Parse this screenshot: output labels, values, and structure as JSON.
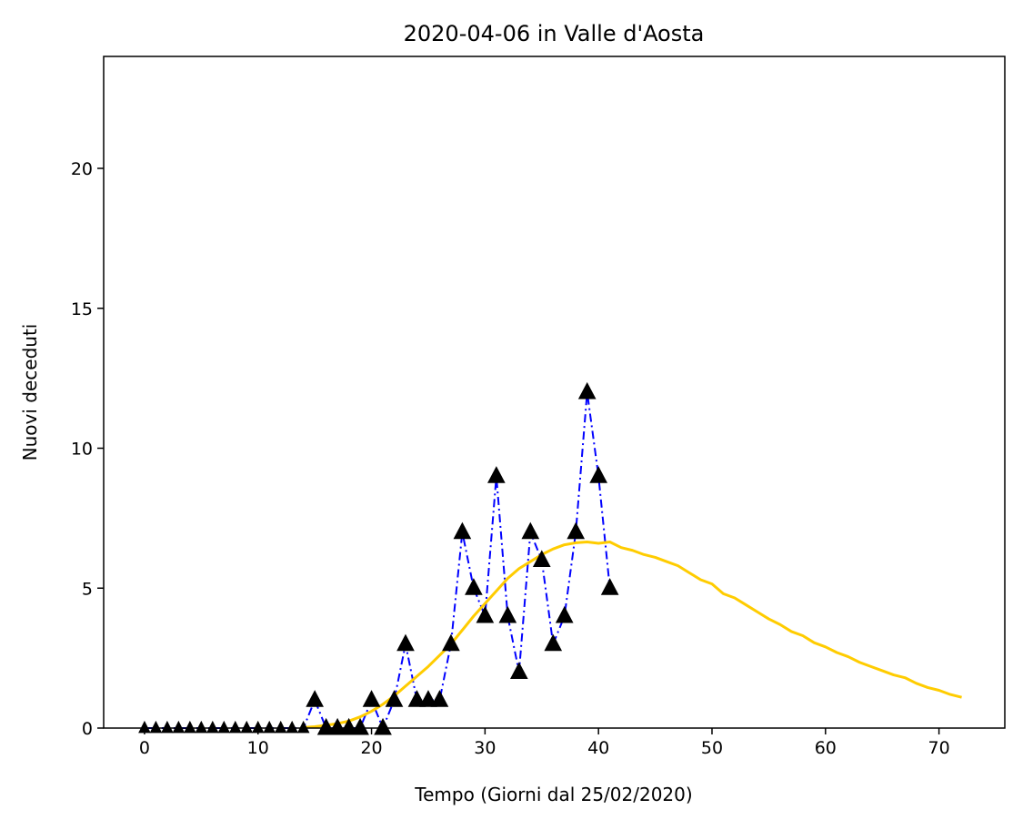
{
  "chart_data": {
    "type": "line",
    "title": "2020-04-06 in Valle d'Aosta",
    "xlabel": "Tempo (Giorni dal 25/02/2020)",
    "ylabel": "Nuovi deceduti",
    "xlim": [
      -3.6,
      75.8
    ],
    "ylim": [
      0,
      24
    ],
    "xticks": [
      0,
      10,
      20,
      30,
      40,
      50,
      60,
      70
    ],
    "yticks": [
      0,
      5,
      10,
      15,
      20
    ],
    "grid": false,
    "series": [
      {
        "style": "blue dash-dot line with black triangle markers",
        "color": "#0000ff",
        "marker_color": "#000000",
        "x": [
          0,
          1,
          2,
          3,
          4,
          5,
          6,
          7,
          8,
          9,
          10,
          11,
          12,
          13,
          14,
          15,
          16,
          17,
          18,
          19,
          20,
          21,
          22,
          23,
          24,
          25,
          26,
          27,
          28,
          29,
          30,
          31,
          32,
          33,
          34,
          35,
          36,
          37,
          38,
          39,
          40,
          41
        ],
        "y": [
          0,
          0,
          0,
          0,
          0,
          0,
          0,
          0,
          0,
          0,
          0,
          0,
          0,
          0,
          0,
          1,
          0,
          0,
          0,
          0,
          1,
          0,
          1,
          3,
          1,
          1,
          1,
          3,
          7,
          5,
          4,
          9,
          4,
          2,
          7,
          6,
          3,
          4,
          7,
          12,
          9,
          5
        ]
      },
      {
        "style": "solid line",
        "color": "#ffcc00",
        "x": [
          14,
          15,
          16,
          17,
          18,
          19,
          20,
          21,
          22,
          23,
          24,
          25,
          26,
          27,
          28,
          29,
          30,
          31,
          32,
          33,
          34,
          35,
          36,
          37,
          38,
          39,
          40,
          41,
          42,
          43,
          44,
          45,
          46,
          47,
          48,
          49,
          50,
          51,
          52,
          53,
          54,
          55,
          56,
          57,
          58,
          59,
          60,
          61,
          62,
          63,
          64,
          65,
          66,
          67,
          68,
          69,
          70,
          71,
          72
        ],
        "y": [
          0.02,
          0.05,
          0.1,
          0.16,
          0.25,
          0.4,
          0.6,
          0.85,
          1.15,
          1.5,
          1.85,
          2.2,
          2.6,
          3.0,
          3.5,
          4.0,
          4.45,
          4.9,
          5.35,
          5.7,
          5.95,
          6.2,
          6.4,
          6.55,
          6.62,
          6.65,
          6.6,
          6.65,
          6.45,
          6.35,
          6.2,
          6.1,
          5.95,
          5.8,
          5.55,
          5.3,
          5.15,
          4.8,
          4.65,
          4.4,
          4.15,
          3.9,
          3.7,
          3.45,
          3.3,
          3.05,
          2.9,
          2.7,
          2.55,
          2.35,
          2.2,
          2.05,
          1.9,
          1.8,
          1.6,
          1.45,
          1.35,
          1.2,
          1.1
        ]
      }
    ]
  }
}
